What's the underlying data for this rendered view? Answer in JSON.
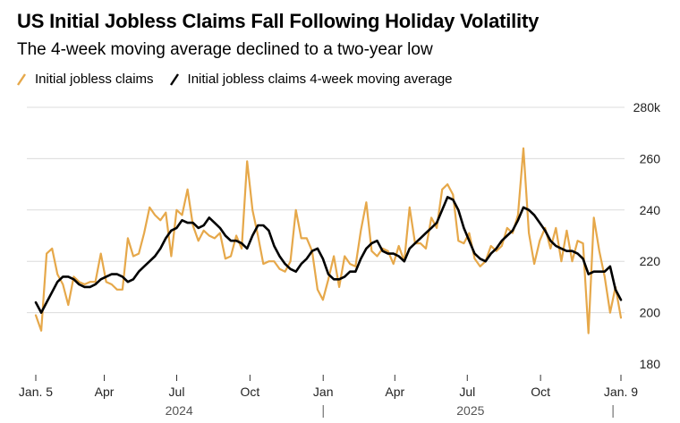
{
  "title": "US Initial Jobless Claims Fall Following Holiday Volatility",
  "subtitle": "The 4-week moving average declined to a two-year low",
  "colors": {
    "claims": "#E6A84A",
    "average": "#000000",
    "grid": "#dcdcdc"
  },
  "legend": [
    {
      "label": "Initial jobless claims",
      "color": "#E6A84A"
    },
    {
      "label": "Initial jobless claims 4-week moving average",
      "color": "#000000"
    }
  ],
  "chart_data": {
    "type": "line",
    "title": "US Initial Jobless Claims Fall Following Holiday Volatility",
    "subtitle": "The 4-week moving average declined to a two-year low",
    "xlabel": "",
    "ylabel": "",
    "ylim": [
      180,
      280
    ],
    "yticks": [
      "180",
      "200",
      "220",
      "240",
      "260",
      "280k"
    ],
    "y_axis_side": "right",
    "grid": "horizontal",
    "legend_position": "top-left",
    "x_start": "Jan. 5, 2024",
    "x_end": "Jan. 9, 2026",
    "x_ticks": [
      "Jan. 5",
      "Apr",
      "Jul",
      "Oct",
      "Jan",
      "Apr",
      "Jul",
      "Oct",
      "Jan. 9"
    ],
    "year_labels": [
      "2024",
      "2025"
    ],
    "series": [
      {
        "name": "Initial jobless claims",
        "color": "#E6A84A",
        "values": [
          199,
          193,
          223,
          225,
          215,
          211,
          203,
          214,
          212,
          211,
          212,
          212,
          223,
          212,
          211,
          209,
          209,
          229,
          222,
          223,
          231,
          241,
          238,
          236,
          239,
          222,
          240,
          238,
          248,
          234,
          228,
          232,
          230,
          229,
          231,
          221,
          222,
          230,
          225,
          259,
          240,
          230,
          219,
          220,
          220,
          217,
          216,
          220,
          240,
          229,
          229,
          224,
          209,
          205,
          213,
          222,
          210,
          222,
          219,
          218,
          232,
          243,
          224,
          222,
          225,
          224,
          219,
          226,
          220,
          241,
          227,
          227,
          225,
          237,
          233,
          248,
          250,
          246,
          228,
          227,
          231,
          221,
          218,
          220,
          226,
          224,
          226,
          233,
          231,
          238,
          264,
          231,
          219,
          228,
          233,
          225,
          233,
          220,
          232,
          220,
          228,
          227,
          192,
          237,
          224,
          214,
          200,
          210,
          198
        ]
      },
      {
        "name": "Initial jobless claims 4-week moving average",
        "color": "#000000",
        "values": [
          204,
          200,
          204,
          208,
          212,
          214,
          214,
          213,
          211,
          210,
          210,
          211,
          213,
          214,
          215,
          215,
          214,
          212,
          213,
          216,
          218,
          220,
          222,
          225,
          229,
          232,
          233,
          236,
          235,
          235,
          233,
          234,
          237,
          235,
          233,
          230,
          228,
          228,
          227,
          225,
          230,
          234,
          234,
          232,
          226,
          222,
          219,
          217,
          216,
          219,
          221,
          224,
          225,
          221,
          215,
          213,
          213,
          214,
          216,
          216,
          221,
          225,
          227,
          228,
          224,
          223,
          223,
          222,
          220,
          225,
          227,
          229,
          231,
          233,
          235,
          240,
          245,
          244,
          240,
          233,
          228,
          223,
          221,
          220,
          223,
          225,
          228,
          230,
          232,
          236,
          241,
          240,
          238,
          235,
          232,
          228,
          226,
          225,
          224,
          224,
          223,
          221,
          215,
          216,
          216,
          216,
          218,
          209,
          205
        ]
      }
    ]
  }
}
